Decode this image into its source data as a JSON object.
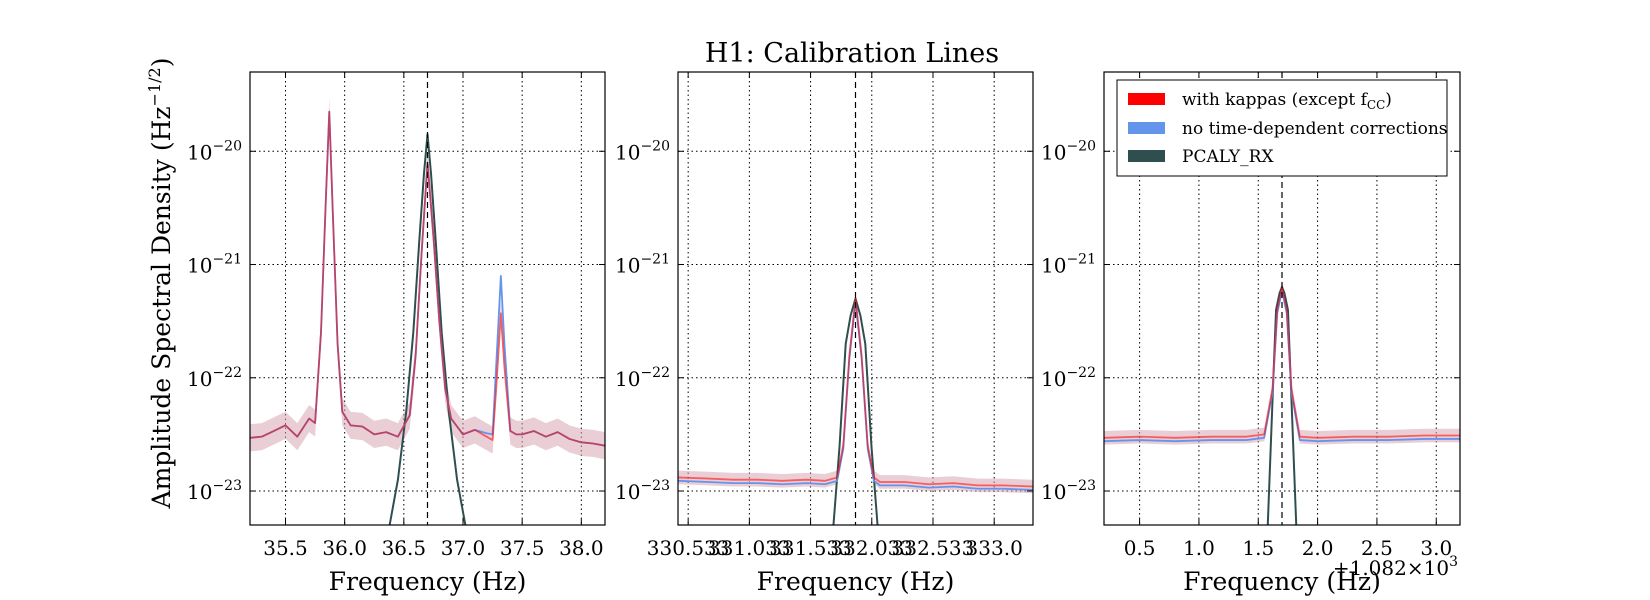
{
  "title": "H1: Calibration Lines",
  "ylabel": "Amplitude Spectral Density (Hz$^{-1/2}$)",
  "ylabel_text": "Amplitude Spectral Density (Hz",
  "ylabel_exp": "−1/2",
  "ylabel_close": ")",
  "offset_text": "+1.082×10³",
  "offset_prefix": "+1.082×10",
  "offset_exp": "3",
  "colors": {
    "kappas": "#ff0000",
    "no_corr": "#6495ed",
    "pcal": "#2f4f4f",
    "band": "#d9a6b5"
  },
  "legend": [
    {
      "label": "with kappas (except f",
      "sub": "CC",
      "close": ")",
      "color": "#ff0000",
      "series": "kappas"
    },
    {
      "label": "no time-dependent corrections",
      "color": "#6495ed",
      "series": "no_corr"
    },
    {
      "label": "PCALY_RX",
      "color": "#2f4f4f",
      "series": "pcal"
    }
  ],
  "chart_data": [
    {
      "type": "line",
      "xlabel": "Frequency (Hz)",
      "xlim": [
        35.2,
        38.2
      ],
      "ylim_log10": [
        -23.3,
        -19.3
      ],
      "log_y": true,
      "grid": true,
      "xticks": [
        35.5,
        36.0,
        36.5,
        37.0,
        37.5,
        38.0
      ],
      "xtick_labels": [
        "35.5",
        "36.0",
        "36.5",
        "37.0",
        "37.5",
        "38.0"
      ],
      "yticks_exp": [
        "−23",
        "−22",
        "−21",
        "−20"
      ],
      "ytick_values": [
        -23,
        -22,
        -21,
        -20
      ],
      "vline": 36.7,
      "band_halfwidth_log10": 0.12,
      "series": [
        {
          "name": "with kappas (except f_CC)",
          "color": "#ff0000",
          "key": "kappas",
          "x": [
            35.2,
            35.3,
            35.4,
            35.5,
            35.6,
            35.7,
            35.75,
            35.8,
            35.84,
            35.87,
            35.9,
            35.94,
            35.98,
            36.05,
            36.15,
            36.25,
            36.35,
            36.45,
            36.55,
            36.6,
            36.65,
            36.7,
            36.75,
            36.8,
            36.85,
            36.9,
            37.0,
            37.1,
            37.2,
            37.25,
            37.28,
            37.32,
            37.35,
            37.4,
            37.45,
            37.5,
            37.6,
            37.7,
            37.8,
            37.9,
            38.0,
            38.1,
            38.2
          ],
          "y": [
            -22.53,
            -22.52,
            -22.47,
            -22.42,
            -22.52,
            -22.36,
            -22.4,
            -21.6,
            -20.45,
            -19.65,
            -20.55,
            -21.7,
            -22.3,
            -22.42,
            -22.43,
            -22.5,
            -22.48,
            -22.52,
            -22.33,
            -21.8,
            -20.9,
            -20.1,
            -20.75,
            -21.5,
            -22.1,
            -22.36,
            -22.5,
            -22.46,
            -22.52,
            -22.55,
            -22.1,
            -21.43,
            -21.9,
            -22.47,
            -22.5,
            -22.5,
            -22.47,
            -22.52,
            -22.48,
            -22.54,
            -22.57,
            -22.58,
            -22.6
          ]
        },
        {
          "name": "no time-dependent corrections",
          "color": "#6495ed",
          "key": "no_corr",
          "x": [
            35.2,
            35.3,
            35.4,
            35.5,
            35.6,
            35.7,
            35.75,
            35.8,
            35.84,
            35.87,
            35.9,
            35.94,
            35.98,
            36.05,
            36.15,
            36.25,
            36.35,
            36.45,
            36.55,
            36.6,
            36.65,
            36.7,
            36.75,
            36.8,
            36.85,
            36.9,
            37.0,
            37.1,
            37.2,
            37.25,
            37.28,
            37.32,
            37.35,
            37.4,
            37.45,
            37.5,
            37.6,
            37.7,
            37.8,
            37.9,
            38.0,
            38.1,
            38.2
          ],
          "y": [
            -22.53,
            -22.52,
            -22.47,
            -22.42,
            -22.52,
            -22.36,
            -22.4,
            -21.6,
            -20.45,
            -19.65,
            -20.55,
            -21.7,
            -22.3,
            -22.42,
            -22.43,
            -22.5,
            -22.48,
            -22.52,
            -22.33,
            -21.8,
            -20.9,
            -20.1,
            -20.75,
            -21.5,
            -22.1,
            -22.36,
            -22.5,
            -22.46,
            -22.49,
            -22.5,
            -21.9,
            -21.1,
            -21.7,
            -22.47,
            -22.5,
            -22.5,
            -22.47,
            -22.52,
            -22.48,
            -22.54,
            -22.57,
            -22.58,
            -22.6
          ]
        },
        {
          "name": "PCALY_RX",
          "color": "#2f4f4f",
          "key": "pcal",
          "x": [
            36.38,
            36.45,
            36.52,
            36.58,
            36.63,
            36.67,
            36.7,
            36.73,
            36.77,
            36.82,
            36.88,
            36.95,
            37.02
          ],
          "y": [
            -23.3,
            -22.9,
            -22.3,
            -21.6,
            -20.8,
            -20.2,
            -19.85,
            -20.2,
            -20.8,
            -21.6,
            -22.3,
            -22.9,
            -23.3
          ]
        }
      ]
    },
    {
      "type": "line",
      "xlabel": "Frequency (Hz)",
      "xlim": [
        330.45,
        333.35
      ],
      "ylim_log10": [
        -23.3,
        -19.3
      ],
      "log_y": true,
      "grid": true,
      "xticks": [
        330.533,
        331.033,
        331.533,
        332.033,
        332.533,
        333.033
      ],
      "xtick_labels": [
        "330.533",
        "331.033",
        "331.533",
        "332.033",
        "332.533",
        "333.0"
      ],
      "yticks_exp": [
        "−23",
        "−22",
        "−21",
        "−20"
      ],
      "ytick_values": [
        -23,
        -22,
        -21,
        -20
      ],
      "vline": 331.9,
      "band_halfwidth_log10": 0.06,
      "series": [
        {
          "name": "with kappas (except f_CC)",
          "color": "#ff0000",
          "key": "kappas",
          "x": [
            330.45,
            330.7,
            330.9,
            331.1,
            331.3,
            331.5,
            331.65,
            331.75,
            331.8,
            331.85,
            331.9,
            331.95,
            332.0,
            332.05,
            332.1,
            332.3,
            332.5,
            332.7,
            332.9,
            333.1,
            333.35
          ],
          "y": [
            -22.88,
            -22.89,
            -22.9,
            -22.9,
            -22.91,
            -22.9,
            -22.91,
            -22.88,
            -22.6,
            -21.8,
            -21.3,
            -21.8,
            -22.6,
            -22.88,
            -22.92,
            -22.92,
            -22.94,
            -22.93,
            -22.95,
            -22.95,
            -22.96
          ]
        },
        {
          "name": "no time-dependent corrections",
          "color": "#6495ed",
          "key": "no_corr",
          "x": [
            330.45,
            330.7,
            330.9,
            331.1,
            331.3,
            331.5,
            331.65,
            331.75,
            331.8,
            331.85,
            331.9,
            331.95,
            332.0,
            332.05,
            332.1,
            332.3,
            332.5,
            332.7,
            332.9,
            333.1,
            333.35
          ],
          "y": [
            -22.91,
            -22.92,
            -22.93,
            -22.93,
            -22.94,
            -22.93,
            -22.94,
            -22.91,
            -22.63,
            -21.83,
            -21.33,
            -21.83,
            -22.63,
            -22.91,
            -22.95,
            -22.95,
            -22.97,
            -22.96,
            -22.98,
            -22.98,
            -22.99
          ]
        },
        {
          "name": "PCALY_RX",
          "color": "#2f4f4f",
          "key": "pcal",
          "x": [
            331.72,
            331.77,
            331.82,
            331.86,
            331.9,
            331.94,
            331.98,
            332.03,
            332.08
          ],
          "y": [
            -23.3,
            -22.6,
            -21.7,
            -21.45,
            -21.3,
            -21.45,
            -21.7,
            -22.6,
            -23.3
          ]
        }
      ]
    },
    {
      "type": "line",
      "xlabel": "Frequency (Hz)",
      "xlim": [
        0.2,
        3.2
      ],
      "ylim_log10": [
        -23.3,
        -19.3
      ],
      "log_y": true,
      "grid": true,
      "xticks": [
        0.5,
        1.0,
        1.5,
        2.0,
        2.5,
        3.0
      ],
      "xtick_labels": [
        "0.5",
        "1.0",
        "1.5",
        "2.0",
        "2.5",
        "3.0"
      ],
      "yticks_exp": [
        "−23",
        "−22",
        "−21",
        "−20"
      ],
      "ytick_values": [
        -23,
        -22,
        -21,
        -20
      ],
      "vline": 1.7,
      "band_halfwidth_log10": 0.06,
      "series": [
        {
          "name": "with kappas (except f_CC)",
          "color": "#ff0000",
          "key": "kappas",
          "x": [
            0.2,
            0.5,
            0.8,
            1.1,
            1.4,
            1.55,
            1.62,
            1.66,
            1.7,
            1.74,
            1.78,
            1.85,
            2.0,
            2.3,
            2.6,
            2.9,
            3.2
          ],
          "y": [
            -22.53,
            -22.52,
            -22.53,
            -22.52,
            -22.52,
            -22.5,
            -22.1,
            -21.4,
            -21.2,
            -21.4,
            -22.1,
            -22.52,
            -22.53,
            -22.52,
            -22.52,
            -22.51,
            -22.51
          ]
        },
        {
          "name": "no time-dependent corrections",
          "color": "#6495ed",
          "key": "no_corr",
          "x": [
            0.2,
            0.5,
            0.8,
            1.1,
            1.4,
            1.55,
            1.62,
            1.66,
            1.7,
            1.74,
            1.78,
            1.85,
            2.0,
            2.3,
            2.6,
            2.9,
            3.2
          ],
          "y": [
            -22.56,
            -22.55,
            -22.56,
            -22.55,
            -22.55,
            -22.53,
            -22.13,
            -21.43,
            -21.23,
            -21.43,
            -22.13,
            -22.55,
            -22.56,
            -22.55,
            -22.55,
            -22.54,
            -22.54
          ]
        },
        {
          "name": "PCALY_RX",
          "color": "#2f4f4f",
          "key": "pcal",
          "x": [
            1.58,
            1.62,
            1.65,
            1.68,
            1.7,
            1.72,
            1.75,
            1.78,
            1.82
          ],
          "y": [
            -23.3,
            -22.2,
            -21.4,
            -21.25,
            -21.2,
            -21.25,
            -21.4,
            -22.2,
            -23.3
          ]
        }
      ]
    }
  ]
}
